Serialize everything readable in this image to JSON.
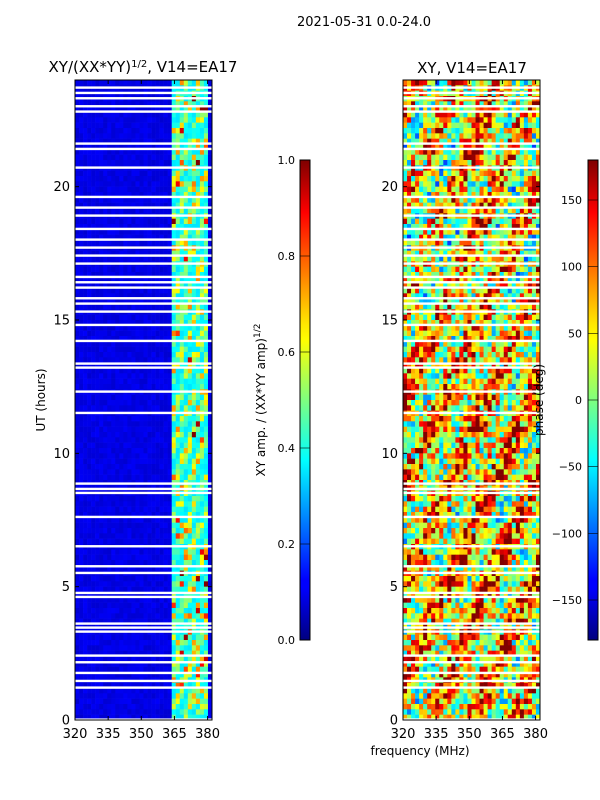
{
  "suptitle": "2021-05-31 0.0-24.0",
  "chart_data": [
    {
      "type": "heatmap",
      "title": "XY/(XX*YY)^1/2, V14=EA17",
      "title_main": "XY/(XX*YY)",
      "title_sup": "1/2",
      "title_tail": ", V14=EA17",
      "xlabel": "",
      "ylabel": "UT (hours)",
      "xlim": [
        320,
        382
      ],
      "ylim": [
        0,
        24
      ],
      "xticks": [
        320,
        335,
        350,
        365,
        380
      ],
      "yticks": [
        0,
        5,
        10,
        15,
        20
      ],
      "colorbar": {
        "label": "XY amp. / (XX*YY amp)^1/2",
        "label_main": "XY amp. / (XX*YY amp)",
        "label_sup": "1/2",
        "range": [
          0.0,
          1.0
        ],
        "ticks": [
          "0.0",
          "0.2",
          "0.4",
          "0.6",
          "0.8",
          "1.0"
        ],
        "tick_values": [
          0,
          0.2,
          0.4,
          0.6,
          0.8,
          1.0
        ]
      },
      "gaps_hours": [
        0.0,
        1.2,
        1.45,
        1.75,
        2.15,
        2.4,
        3.3,
        3.45,
        3.6,
        4.6,
        4.75,
        5.5,
        5.75,
        6.5,
        7.6,
        8.5,
        8.65,
        8.85,
        11.5,
        12.3,
        13.2,
        13.35,
        14.2,
        14.8,
        15.3,
        15.6,
        15.8,
        16.2,
        16.4,
        16.6,
        17.1,
        17.4,
        17.7,
        18.0,
        18.4,
        18.9,
        19.2,
        19.6,
        20.7,
        21.4,
        21.6,
        22.8,
        23.0,
        23.3,
        23.5,
        23.7
      ]
    },
    {
      "type": "heatmap",
      "title": "XY, V14=EA17",
      "xlabel": "frequency (MHz)",
      "ylabel": "",
      "xlim": [
        320,
        382
      ],
      "ylim": [
        0,
        24
      ],
      "xticks": [
        320,
        335,
        350,
        365,
        380
      ],
      "yticks": [
        0,
        5,
        10,
        15,
        20
      ],
      "colorbar": {
        "label": "phase (deg)",
        "range": [
          -180,
          180
        ],
        "ticks": [
          "150",
          "100",
          "50",
          "0",
          "−50",
          "−100",
          "−150"
        ],
        "tick_values": [
          150,
          100,
          50,
          0,
          -50,
          -100,
          -150
        ]
      },
      "gaps_hours": [
        0.0,
        1.2,
        1.45,
        1.75,
        2.15,
        2.4,
        3.3,
        3.45,
        3.6,
        4.6,
        4.75,
        5.5,
        5.75,
        6.5,
        7.6,
        8.5,
        8.65,
        8.85,
        11.5,
        12.3,
        13.2,
        13.35,
        14.2,
        14.8,
        15.3,
        15.6,
        15.8,
        16.2,
        16.4,
        16.6,
        17.1,
        17.4,
        17.7,
        18.0,
        18.4,
        18.9,
        19.2,
        19.6,
        20.7,
        21.4,
        21.6,
        22.8,
        23.0,
        23.3,
        23.5,
        23.7
      ]
    }
  ]
}
